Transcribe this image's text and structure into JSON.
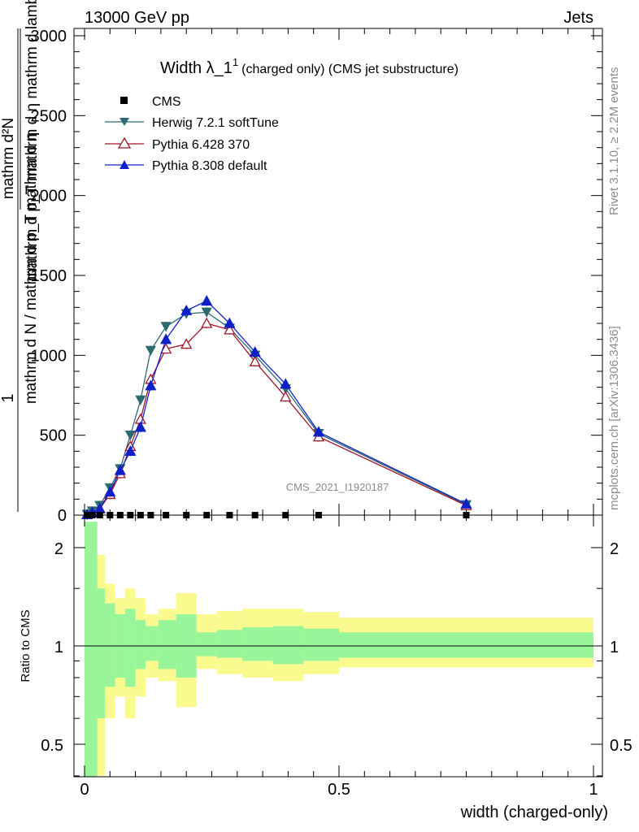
{
  "header": {
    "left": "13000 GeV pp",
    "right": "Jets"
  },
  "title": {
    "main": "Width λ_1",
    "sup": "1",
    "sub": "(charged only) (CMS jet substructure)"
  },
  "side": {
    "rivet": "Rivet 3.1.10, ≥ 2.2M events",
    "mcplots": "mcplots.cern.ch [arXiv:1306.3436]"
  },
  "watermark": "CMS_2021_I1920187",
  "upper": {
    "ylabel_num": "1",
    "ylabel_den": "mathrm d N / mathrm d p_T mathrm d η",
    "ylabel_frac_num": "mathrm d²N",
    "ylabel_frac_den": "mathrm d p_T mathrm d η mathrm d lambda",
    "yticks": [
      "0",
      "500",
      "1000",
      "1500",
      "2000",
      "2500",
      "3000"
    ]
  },
  "lower": {
    "ylabel": "Ratio to CMS",
    "yticks": [
      "0.5",
      "1",
      "2"
    ]
  },
  "xaxis": {
    "label": "width (charged-only)",
    "ticks": [
      "0",
      "0.5",
      "1"
    ]
  },
  "legend": {
    "cms": "CMS",
    "herwig": "Herwig 7.2.1 softTune",
    "py6": "Pythia 6.428 370",
    "py8": "Pythia 8.308 default"
  },
  "colors": {
    "cms": "#000000",
    "herwig": "#2b6b70",
    "py6": "#a0162a",
    "py8": "#1020c8",
    "band_stat": "#99f599",
    "band_tot": "#fbfa8f"
  },
  "chart_data": {
    "type": "line",
    "x": [
      0.005,
      0.015,
      0.03,
      0.05,
      0.07,
      0.09,
      0.11,
      0.13,
      0.16,
      0.2,
      0.24,
      0.285,
      0.335,
      0.395,
      0.46,
      0.75
    ],
    "xlim": [
      0,
      1
    ],
    "ylim": [
      0,
      3000
    ],
    "series": [
      {
        "name": "CMS",
        "values": [
          0,
          0,
          0,
          0,
          0,
          0,
          0,
          0,
          0,
          0,
          0,
          0,
          0,
          0,
          0,
          0
        ]
      },
      {
        "name": "Herwig 7.2.1 softTune",
        "values": [
          5,
          25,
          60,
          170,
          290,
          500,
          720,
          1030,
          1180,
          1260,
          1270,
          1170,
          1000,
          790,
          510,
          65
        ]
      },
      {
        "name": "Pythia 6.428 370",
        "values": [
          3,
          15,
          40,
          130,
          260,
          430,
          600,
          850,
          1040,
          1070,
          1200,
          1160,
          960,
          740,
          490,
          60
        ]
      },
      {
        "name": "Pythia 8.308 default",
        "values": [
          3,
          15,
          40,
          145,
          280,
          400,
          550,
          810,
          1100,
          1280,
          1340,
          1200,
          1020,
          820,
          520,
          70
        ]
      }
    ],
    "ratio": {
      "ylim": [
        0.35,
        2.3
      ],
      "edges": [
        0,
        0.025,
        0.04,
        0.06,
        0.08,
        0.1,
        0.12,
        0.145,
        0.18,
        0.22,
        0.26,
        0.31,
        0.37,
        0.43,
        0.5,
        1.0
      ],
      "stat_hi": [
        2.4,
        1.5,
        1.35,
        1.25,
        1.3,
        1.2,
        1.15,
        1.2,
        1.25,
        1.1,
        1.12,
        1.14,
        1.15,
        1.13,
        1.1
      ],
      "stat_lo": [
        0.3,
        0.6,
        0.75,
        0.8,
        0.75,
        0.85,
        0.9,
        0.85,
        0.8,
        0.93,
        0.92,
        0.9,
        0.88,
        0.9,
        0.92
      ],
      "tot_hi": [
        2.4,
        1.9,
        1.55,
        1.4,
        1.5,
        1.4,
        1.25,
        1.3,
        1.45,
        1.25,
        1.28,
        1.3,
        1.3,
        1.27,
        1.22
      ],
      "tot_lo": [
        0.25,
        0.4,
        0.6,
        0.7,
        0.6,
        0.7,
        0.8,
        0.78,
        0.65,
        0.85,
        0.82,
        0.8,
        0.78,
        0.82,
        0.86
      ]
    }
  }
}
